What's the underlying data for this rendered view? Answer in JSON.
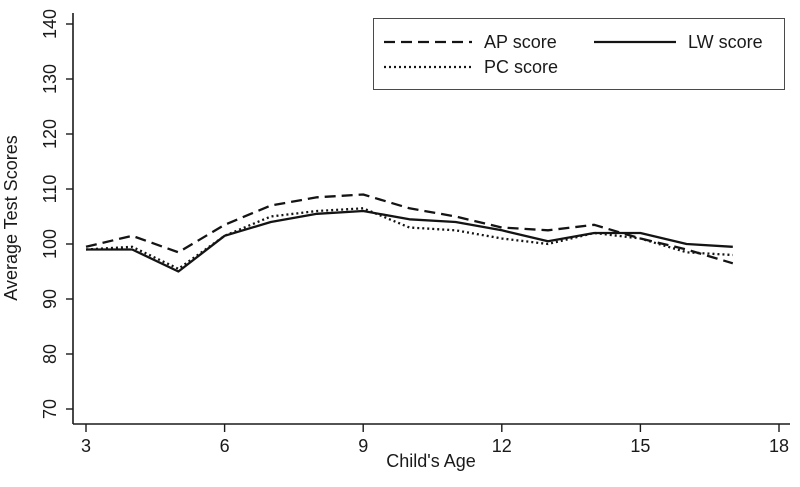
{
  "figure": {
    "background": "#ffffff",
    "axis_color": "#1a1a1a",
    "line_color": "#141414",
    "legend_border_color": "#4a4a4a"
  },
  "chart_data": {
    "type": "line",
    "title": "",
    "xlabel": "Child's Age",
    "ylabel": "Average Test Scores",
    "x": [
      3,
      4,
      5,
      6,
      7,
      8,
      9,
      10,
      11,
      12,
      13,
      14,
      15,
      16,
      17
    ],
    "series": [
      {
        "name": "AP score",
        "style": "dashed",
        "values": [
          99.5,
          101.5,
          98.5,
          103.5,
          107,
          108.5,
          109,
          106.5,
          105,
          103,
          102.5,
          103.5,
          101,
          99,
          96.5
        ]
      },
      {
        "name": "PC score",
        "style": "dotted",
        "values": [
          99,
          99.5,
          95.5,
          101.5,
          105,
          106,
          106.5,
          103,
          102.5,
          101,
          100,
          102,
          101,
          98.5,
          98
        ]
      },
      {
        "name": "LW score",
        "style": "solid",
        "values": [
          99,
          99,
          95,
          101.5,
          104,
          105.5,
          106,
          104.5,
          104,
          102.5,
          100.5,
          102,
          102,
          100,
          99.5
        ]
      }
    ],
    "xlim": [
      3,
      18
    ],
    "ylim": [
      70,
      140
    ],
    "x_ticks": [
      3,
      6,
      9,
      12,
      15,
      18
    ],
    "y_ticks": [
      70,
      80,
      90,
      100,
      110,
      120,
      130,
      140
    ],
    "grid": false,
    "legend_position": "top-right"
  },
  "legend": {
    "items": [
      {
        "label": "AP score",
        "style": "dashed"
      },
      {
        "label": "LW score",
        "style": "solid"
      },
      {
        "label": "PC score",
        "style": "dotted"
      }
    ]
  }
}
